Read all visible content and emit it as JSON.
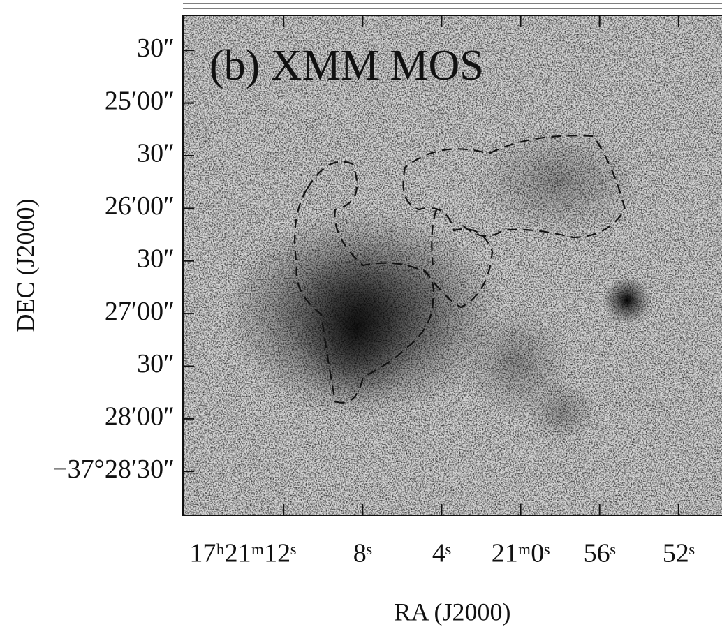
{
  "chart_data": {
    "type": "image",
    "title": "(b) XMM MOS",
    "xlabel": "RA (J2000)",
    "ylabel": "DEC (J2000)",
    "xlim": [
      77.1,
      49.8
    ],
    "xticks": [
      {
        "value": 72,
        "label": "17ʰ21ᵐ12ˢ"
      },
      {
        "value": 68,
        "label": "8ˢ"
      },
      {
        "value": 64,
        "label": "4ˢ"
      },
      {
        "value": 60,
        "label": "21ᵐ0ˢ"
      },
      {
        "value": 56,
        "label": "56ˢ"
      },
      {
        "value": 52,
        "label": "52ˢ"
      }
    ],
    "ylim": [
      -37.48194,
      -37.40278
    ],
    "yticks": [
      {
        "value": -37.408333,
        "label": "30″"
      },
      {
        "value": -37.416667,
        "label": "25′00″"
      },
      {
        "value": -37.425,
        "label": "30″"
      },
      {
        "value": -37.433333,
        "label": "26′00″"
      },
      {
        "value": -37.441667,
        "label": "30″"
      },
      {
        "value": -37.45,
        "label": "27′00″"
      },
      {
        "value": -37.458333,
        "label": "30″"
      },
      {
        "value": -37.466667,
        "label": "28′00″"
      },
      {
        "value": -37.475,
        "label": "−37°28′30″"
      }
    ]
  }
}
